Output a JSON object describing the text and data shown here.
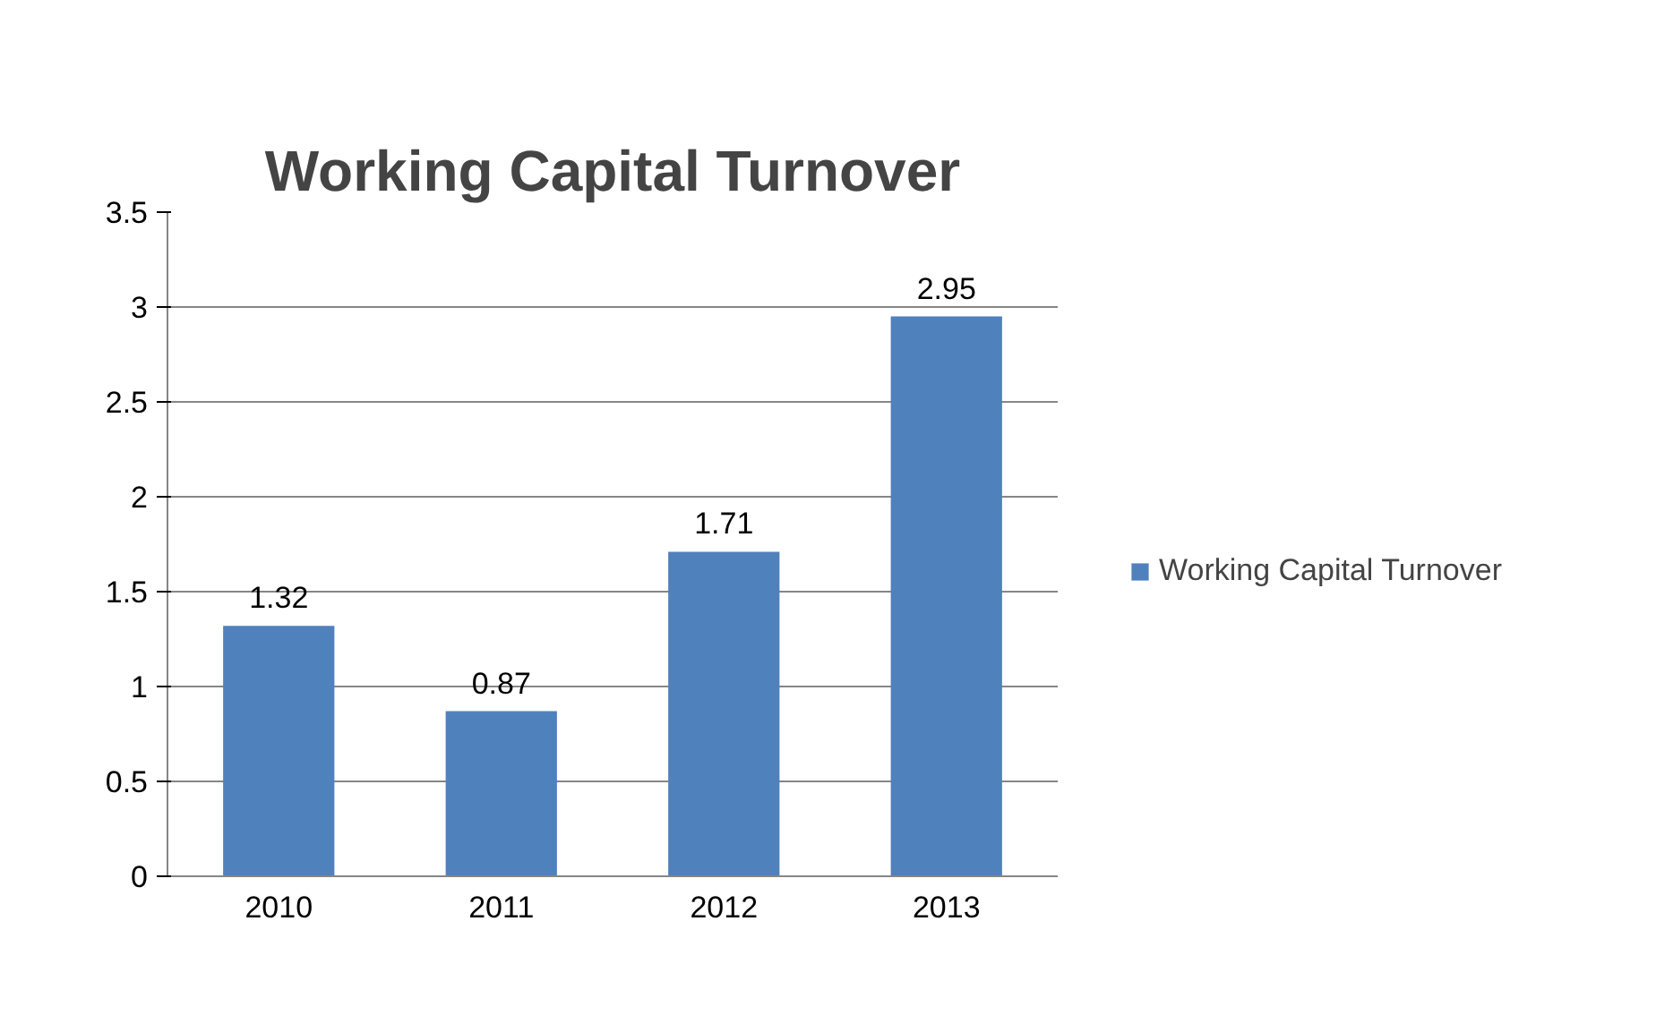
{
  "chart_data": {
    "type": "bar",
    "title": "Working Capital Turnover",
    "categories": [
      "2010",
      "2011",
      "2012",
      "2013"
    ],
    "series": [
      {
        "name": "Working Capital Turnover",
        "color": "#4f81bd",
        "values": [
          1.32,
          0.87,
          1.71,
          2.95
        ]
      }
    ],
    "ylim": [
      0,
      3.5
    ],
    "yticks": [
      0,
      0.5,
      1,
      1.5,
      2,
      2.5,
      3,
      3.5
    ],
    "grid": "y",
    "legend": "right",
    "data_labels": true
  }
}
